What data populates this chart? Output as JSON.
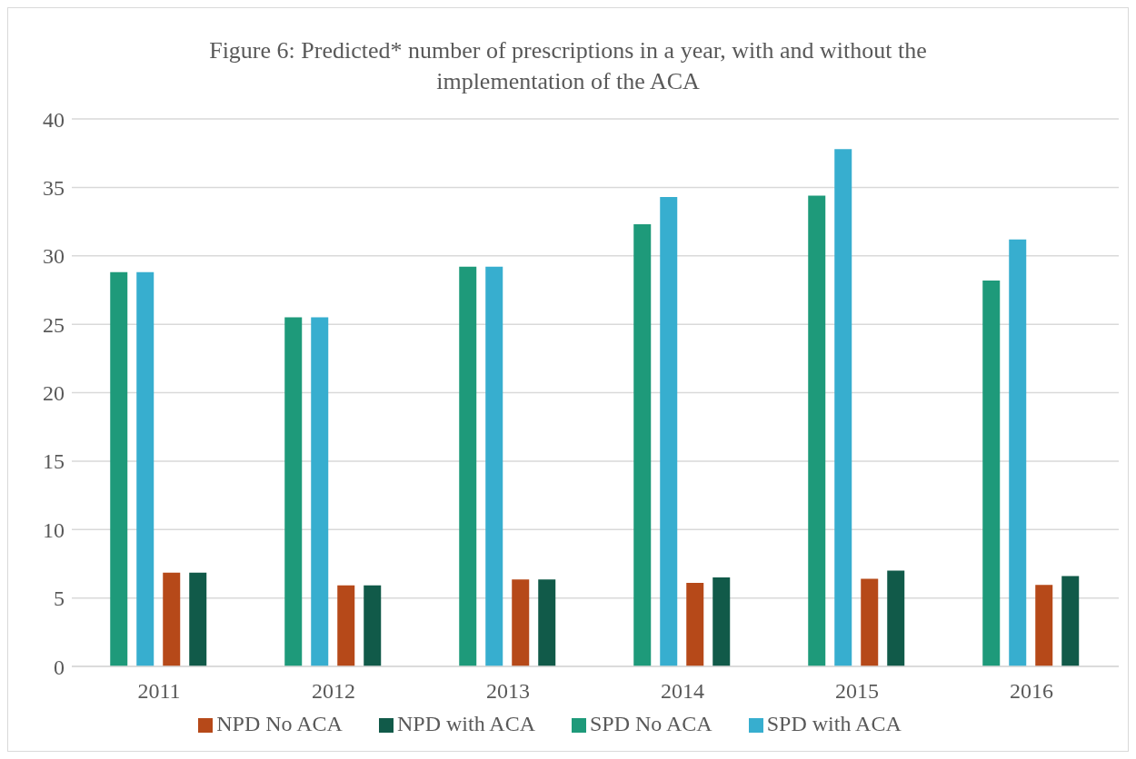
{
  "chart_data": {
    "type": "bar",
    "title": "Figure 6: Predicted* number of prescriptions in a year, with and without the implementation of the ACA",
    "categories": [
      "2011",
      "2012",
      "2013",
      "2014",
      "2015",
      "2016"
    ],
    "series": [
      {
        "name": "SPD No ACA",
        "color": "#1e9a7a",
        "values": [
          28.8,
          25.5,
          29.2,
          32.3,
          34.4,
          28.2
        ]
      },
      {
        "name": "SPD with ACA",
        "color": "#37aecf",
        "values": [
          28.8,
          25.5,
          29.2,
          34.3,
          37.8,
          31.2
        ]
      },
      {
        "name": "NPD No ACA",
        "color": "#b64919",
        "values": [
          6.85,
          5.92,
          6.35,
          6.1,
          6.4,
          5.95
        ]
      },
      {
        "name": "NPD with ACA",
        "color": "#115a49",
        "values": [
          6.85,
          5.92,
          6.35,
          6.5,
          7.0,
          6.6
        ]
      }
    ],
    "ylim": [
      0,
      40
    ],
    "yticks": [
      0,
      5,
      10,
      15,
      20,
      25,
      30,
      35,
      40
    ],
    "grid": "y",
    "legend": "bottom"
  }
}
